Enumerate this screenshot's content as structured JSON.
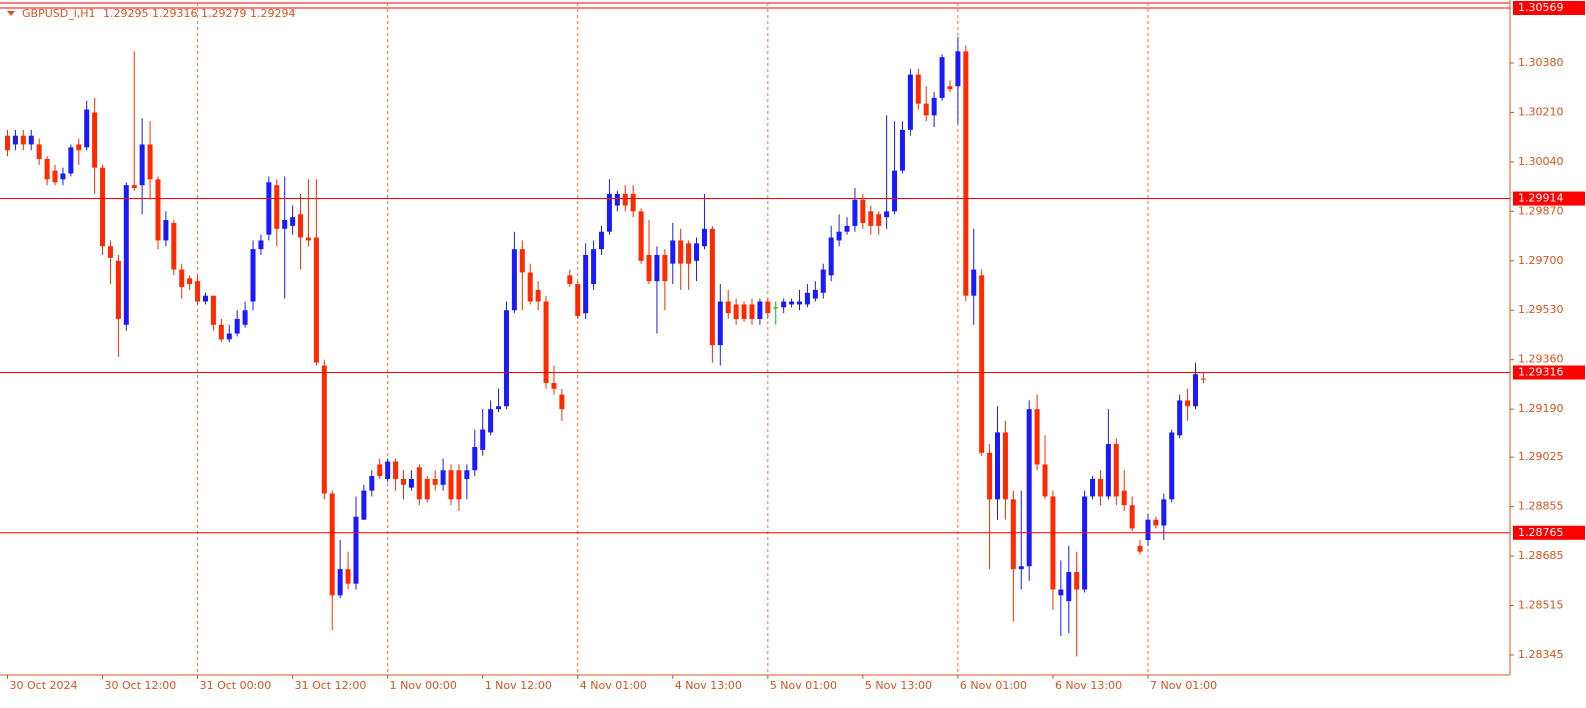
{
  "chart_data": {
    "type": "candlestick",
    "title": "GBPUSD_i,H1",
    "categories": [
      "30 Oct 2024",
      null,
      null,
      null,
      null,
      null,
      null,
      null,
      null,
      null,
      null,
      null,
      "30 Oct 12:00",
      null,
      null,
      null,
      null,
      null,
      null,
      null,
      null,
      null,
      null,
      null,
      "31 Oct 00:00",
      null,
      null,
      null,
      null,
      null,
      null,
      null,
      null,
      null,
      null,
      null,
      "31 Oct 12:00",
      null,
      null,
      null,
      null,
      null,
      null,
      null,
      null,
      null,
      null,
      null,
      "1 Nov 00:00",
      null,
      null,
      null,
      null,
      null,
      null,
      null,
      null,
      null,
      null,
      null,
      "1 Nov 12:00",
      null,
      null,
      null,
      null,
      null,
      null,
      null,
      null,
      null,
      null,
      null,
      "4 Nov 01:00",
      null,
      null,
      null,
      null,
      null,
      null,
      null,
      null,
      null,
      null,
      null,
      "4 Nov 13:00",
      null,
      null,
      null,
      null,
      null,
      null,
      null,
      null,
      null,
      null,
      null,
      "5 Nov 01:00",
      null,
      null,
      null,
      null,
      null,
      null,
      null,
      null,
      null,
      null,
      null,
      "5 Nov 13:00",
      null,
      null,
      null,
      null,
      null,
      null,
      null,
      null,
      null,
      null,
      null,
      "6 Nov 01:00",
      null,
      null,
      null,
      null,
      null,
      null,
      null,
      null,
      null,
      null,
      null,
      "6 Nov 13:00",
      null,
      null,
      null,
      null,
      null,
      null,
      null,
      null,
      null,
      null,
      null,
      "7 Nov 01:00",
      null,
      null,
      null,
      null,
      null,
      null,
      null
    ],
    "open": [
      1.3013,
      1.301,
      1.3013,
      1.301,
      1.301,
      1.3005,
      1.3001,
      1.2998,
      1.3,
      1.301,
      1.3009,
      1.3021,
      1.3002,
      1.2975,
      1.297,
      1.2948,
      1.2996,
      1.2996,
      1.301,
      1.2998,
      1.2977,
      1.2983,
      1.2967,
      1.2964,
      1.2963,
      1.2956,
      1.2958,
      1.2948,
      1.2943,
      1.2945,
      1.2948,
      1.2956,
      1.2974,
      1.2979,
      1.2996,
      1.2981,
      1.2982,
      1.2986,
      1.2978,
      1.2978,
      1.2934,
      1.289,
      1.2855,
      1.2864,
      1.2859,
      1.2881,
      1.2891,
      1.29,
      1.2895,
      1.2901,
      1.2895,
      1.2892,
      1.2899,
      1.2895,
      1.2895,
      1.2893,
      1.2898,
      1.2898,
      1.2895,
      1.2898,
      1.2905,
      1.2911,
      1.2919,
      1.292,
      1.2953,
      1.2974,
      1.2966,
      1.296,
      1.2956,
      1.2928,
      1.2924,
      1.2965,
      1.2962,
      1.2952,
      1.2962,
      1.2974,
      1.298,
      1.2989,
      1.2993,
      1.2993,
      1.2987,
      1.2972,
      1.2963,
      1.2972,
      1.2969,
      1.2977,
      1.2976,
      1.297,
      1.2975,
      1.2981,
      1.2941,
      1.2956,
      1.2955,
      1.2955,
      1.2955,
      1.295,
      1.2956,
      1.2954,
      1.2954,
      1.2955,
      1.2955,
      1.2955,
      1.2957,
      1.2959,
      1.2965,
      1.2977,
      1.298,
      1.2982,
      1.2991,
      1.2987,
      1.2986,
      1.2985,
      1.2987,
      1.3001,
      1.3015,
      1.3034,
      1.3024,
      1.302,
      1.3026,
      1.303,
      1.303,
      1.3042,
      1.2958,
      1.2965,
      1.2904,
      1.2888,
      1.2911,
      1.2888,
      1.2864,
      1.2865,
      1.2919,
      1.29,
      1.2889,
      1.2855,
      1.2853,
      1.2863,
      1.2857,
      1.2889,
      1.2895,
      1.2889,
      1.2907,
      1.2891,
      1.2886,
      1.2872,
      1.2874,
      1.2881,
      1.2879,
      1.2888,
      1.291,
      1.2922,
      1.292,
      1.29295
    ],
    "high": [
      1.3015,
      1.3015,
      1.3015,
      1.3015,
      1.3012,
      1.3006,
      1.3003,
      1.3002,
      1.301,
      1.3012,
      1.3025,
      1.3026,
      1.3003,
      1.2977,
      1.2972,
      1.2997,
      1.3042,
      1.3019,
      1.3018,
      1.2999,
      1.2987,
      1.2984,
      1.2969,
      1.2965,
      1.2965,
      1.2959,
      1.2958,
      1.295,
      1.2948,
      1.2953,
      1.2956,
      1.2977,
      1.2979,
      1.2999,
      1.2998,
      1.2999,
      1.2989,
      1.2993,
      1.2998,
      1.2998,
      1.2936,
      1.2891,
      1.2874,
      1.287,
      1.2889,
      1.2893,
      1.2898,
      1.2902,
      1.2902,
      1.2902,
      1.2898,
      1.2898,
      1.29,
      1.2896,
      1.2898,
      1.2902,
      1.29,
      1.29,
      1.29,
      1.2912,
      1.2919,
      1.2922,
      1.2926,
      1.2956,
      1.298,
      1.2977,
      1.2969,
      1.2963,
      1.2958,
      1.2934,
      1.2926,
      1.2967,
      1.2963,
      1.2976,
      1.2977,
      1.2982,
      1.2998,
      1.2994,
      1.2996,
      1.2996,
      1.2988,
      1.2984,
      1.2975,
      1.2974,
      1.2983,
      1.2981,
      1.2977,
      1.2978,
      1.2993,
      1.2982,
      1.2962,
      1.296,
      1.2957,
      1.2956,
      1.2957,
      1.2957,
      1.2957,
      1.2956,
      1.2957,
      1.2957,
      1.296,
      1.2962,
      1.2963,
      1.2969,
      1.2982,
      1.2986,
      1.2985,
      1.2995,
      1.2993,
      1.2989,
      1.2987,
      1.302,
      1.3018,
      1.3018,
      1.3036,
      1.3036,
      1.303,
      1.3028,
      1.3041,
      1.3032,
      1.3047,
      1.3044,
      1.2981,
      1.2967,
      1.2907,
      1.292,
      1.2915,
      1.2891,
      1.2891,
      1.2922,
      1.2924,
      1.291,
      1.2891,
      1.2867,
      1.2872,
      1.287,
      1.2891,
      1.2896,
      1.2898,
      1.2919,
      1.2909,
      1.2898,
      1.2889,
      1.2874,
      1.2883,
      1.2882,
      1.289,
      1.2912,
      1.2924,
      1.2926,
      1.2935,
      1.29316
    ],
    "low": [
      1.3006,
      1.3008,
      1.3008,
      1.3008,
      1.3003,
      1.2996,
      1.2996,
      1.2996,
      1.2999,
      1.3003,
      1.3008,
      1.2993,
      1.2972,
      1.2962,
      1.2937,
      1.2946,
      1.2994,
      1.2986,
      1.2991,
      1.2974,
      1.2975,
      1.2965,
      1.2957,
      1.296,
      1.2955,
      1.2955,
      1.2946,
      1.2942,
      1.2942,
      1.2944,
      1.2947,
      1.2953,
      1.2972,
      1.2977,
      1.2975,
      1.2957,
      1.2979,
      1.2967,
      1.2975,
      1.2934,
      1.2888,
      1.2843,
      1.2854,
      1.2857,
      1.2857,
      1.2881,
      1.2889,
      1.2895,
      1.2894,
      1.2891,
      1.2888,
      1.2891,
      1.2886,
      1.2887,
      1.2891,
      1.2891,
      1.2886,
      1.2884,
      1.2888,
      1.2896,
      1.2903,
      1.291,
      1.2918,
      1.2919,
      1.2952,
      1.2953,
      1.2955,
      1.2953,
      1.2926,
      1.2924,
      1.2915,
      1.2961,
      1.295,
      1.295,
      1.296,
      1.2972,
      1.2979,
      1.2987,
      1.2987,
      1.2985,
      1.2969,
      1.2962,
      1.2945,
      1.2953,
      1.2962,
      1.296,
      1.296,
      1.2963,
      1.2974,
      1.2935,
      1.2934,
      1.295,
      1.2948,
      1.2949,
      1.2948,
      1.2948,
      1.295,
      1.2948,
      1.2952,
      1.2954,
      1.2953,
      1.2954,
      1.2956,
      1.2957,
      1.2963,
      1.2975,
      1.2979,
      1.298,
      1.2981,
      1.2979,
      1.2979,
      1.2981,
      1.2986,
      1.3,
      1.3013,
      1.3022,
      1.3018,
      1.3016,
      1.3025,
      1.3028,
      1.3017,
      1.2956,
      1.2948,
      1.2903,
      1.2864,
      1.2881,
      1.2881,
      1.2846,
      1.2857,
      1.286,
      1.2898,
      1.2888,
      1.285,
      1.2841,
      1.2842,
      1.2834,
      1.2856,
      1.2888,
      1.2886,
      1.2888,
      1.2886,
      1.2884,
      1.2877,
      1.2869,
      1.2872,
      1.2878,
      1.2874,
      1.2887,
      1.2909,
      1.2915,
      1.2919,
      1.29279
    ],
    "close": [
      1.3008,
      1.3013,
      1.301,
      1.3013,
      1.3005,
      1.2998,
      1.2997,
      1.3,
      1.3009,
      1.3008,
      1.3022,
      1.3002,
      1.2975,
      1.2971,
      1.295,
      1.2996,
      1.2995,
      1.301,
      1.2998,
      1.2977,
      1.2984,
      1.2967,
      1.2961,
      1.2962,
      1.2956,
      1.2958,
      1.2948,
      1.2943,
      1.2945,
      1.295,
      1.2953,
      1.2974,
      1.2977,
      1.2997,
      1.2981,
      1.2984,
      1.2985,
      1.2978,
      1.2977,
      1.2935,
      1.289,
      1.2855,
      1.2864,
      1.2859,
      1.2882,
      1.2891,
      1.2896,
      1.2896,
      1.2901,
      1.2895,
      1.2893,
      1.2895,
      1.2888,
      1.2888,
      1.2893,
      1.2898,
      1.2888,
      1.2888,
      1.2898,
      1.2906,
      1.2912,
      1.2919,
      1.292,
      1.2953,
      1.2974,
      1.2966,
      1.2956,
      1.2956,
      1.2928,
      1.2926,
      1.2919,
      1.2962,
      1.2951,
      1.2972,
      1.2974,
      1.298,
      1.2993,
      1.2993,
      1.2989,
      1.2987,
      1.297,
      1.2963,
      1.2972,
      1.2963,
      1.2977,
      1.2969,
      1.2969,
      1.2976,
      1.2981,
      1.2941,
      1.2956,
      1.2952,
      1.295,
      1.295,
      1.295,
      1.2956,
      1.2952,
      1.2954,
      1.2956,
      1.2956,
      1.2956,
      1.2959,
      1.296,
      1.2967,
      1.2978,
      1.298,
      1.2982,
      1.2991,
      1.2983,
      1.2982,
      1.2982,
      1.2987,
      1.3001,
      1.3015,
      1.3034,
      1.3024,
      1.302,
      1.3026,
      1.304,
      1.3029,
      1.3042,
      1.2958,
      1.2967,
      1.2904,
      1.2888,
      1.2911,
      1.2888,
      1.2864,
      1.2865,
      1.2919,
      1.29,
      1.2889,
      1.2857,
      1.2857,
      1.2863,
      1.2857,
      1.2889,
      1.2895,
      1.2889,
      1.2907,
      1.2889,
      1.2886,
      1.2878,
      1.287,
      1.2881,
      1.2879,
      1.2888,
      1.2911,
      1.2922,
      1.292,
      1.2931,
      1.29294
    ],
    "up_color": "#1a1aff",
    "down_color": "#ff2a00",
    "doji_color": "#00c000",
    "hlines": [
      1.30569,
      1.29914,
      1.29316,
      1.28765
    ],
    "hline_color": "#ff0000",
    "ylim": [
      1.28283,
      1.30569
    ],
    "yticks": [
      {
        "value": 1.3038,
        "label": "1.30380"
      },
      {
        "value": 1.3021,
        "label": "1.30210"
      },
      {
        "value": 1.3004,
        "label": "1.30040"
      },
      {
        "value": 1.2987,
        "label": "1.29870"
      },
      {
        "value": 1.297,
        "label": "1.29700"
      },
      {
        "value": 1.2953,
        "label": "1.29530"
      },
      {
        "value": 1.2936,
        "label": "1.29360"
      },
      {
        "value": 1.2919,
        "label": "1.29190"
      },
      1.29025,
      1.28855,
      1.28685,
      1.28515,
      1.28345
    ],
    "grid": true
  }
}
